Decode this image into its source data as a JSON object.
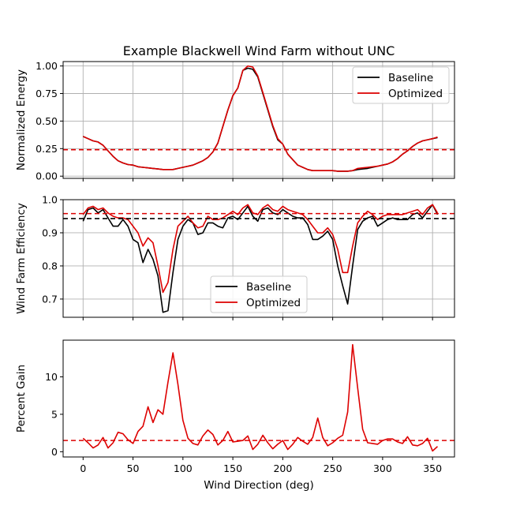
{
  "colors": {
    "baseline": "#000000",
    "optimized": "#dd0000",
    "grid": "#b0b0b0"
  },
  "chart_data": [
    {
      "type": "line",
      "title": "Example Blackwell Wind Farm without UNC",
      "xlabel": "",
      "ylabel": "Normalized Energy",
      "xlim": [
        -20,
        372
      ],
      "ylim": [
        -0.02,
        1.04
      ],
      "yticks": [
        0.0,
        0.25,
        0.5,
        0.75,
        1.0
      ],
      "ytick_labels": [
        "0.00",
        "0.25",
        "0.50",
        "0.75",
        "1.00"
      ],
      "grid": true,
      "legend": "top-right",
      "x": [
        0,
        5,
        10,
        15,
        20,
        25,
        30,
        35,
        40,
        45,
        50,
        55,
        60,
        65,
        70,
        75,
        80,
        85,
        90,
        95,
        100,
        105,
        110,
        115,
        120,
        125,
        130,
        135,
        140,
        145,
        150,
        155,
        160,
        165,
        170,
        175,
        180,
        185,
        190,
        195,
        200,
        205,
        210,
        215,
        220,
        225,
        230,
        235,
        240,
        245,
        250,
        255,
        260,
        265,
        270,
        275,
        280,
        285,
        290,
        295,
        300,
        305,
        310,
        315,
        320,
        325,
        330,
        335,
        340,
        345,
        350,
        355
      ],
      "series": [
        {
          "name": "Baseline",
          "color": "#000000",
          "dash": "",
          "values": [
            0.36,
            0.34,
            0.32,
            0.31,
            0.28,
            0.23,
            0.18,
            0.14,
            0.12,
            0.105,
            0.1,
            0.085,
            0.08,
            0.075,
            0.07,
            0.065,
            0.06,
            0.06,
            0.06,
            0.07,
            0.08,
            0.09,
            0.1,
            0.12,
            0.14,
            0.17,
            0.22,
            0.3,
            0.45,
            0.6,
            0.73,
            0.8,
            0.96,
            0.98,
            0.97,
            0.9,
            0.75,
            0.6,
            0.45,
            0.33,
            0.29,
            0.2,
            0.15,
            0.1,
            0.08,
            0.06,
            0.05,
            0.05,
            0.05,
            0.05,
            0.05,
            0.045,
            0.045,
            0.045,
            0.05,
            0.06,
            0.065,
            0.07,
            0.08,
            0.09,
            0.1,
            0.11,
            0.13,
            0.16,
            0.2,
            0.23,
            0.27,
            0.3,
            0.32,
            0.33,
            0.34,
            0.35
          ]
        },
        {
          "name": "Optimized",
          "color": "#dd0000",
          "dash": "",
          "values": [
            0.36,
            0.34,
            0.32,
            0.31,
            0.28,
            0.23,
            0.18,
            0.14,
            0.12,
            0.105,
            0.1,
            0.085,
            0.08,
            0.075,
            0.07,
            0.065,
            0.06,
            0.06,
            0.06,
            0.07,
            0.08,
            0.09,
            0.1,
            0.12,
            0.14,
            0.17,
            0.22,
            0.3,
            0.45,
            0.6,
            0.73,
            0.8,
            0.96,
            1.0,
            0.99,
            0.91,
            0.76,
            0.61,
            0.46,
            0.34,
            0.29,
            0.2,
            0.15,
            0.1,
            0.08,
            0.06,
            0.05,
            0.05,
            0.05,
            0.05,
            0.05,
            0.045,
            0.045,
            0.045,
            0.05,
            0.07,
            0.075,
            0.08,
            0.085,
            0.09,
            0.1,
            0.11,
            0.13,
            0.16,
            0.2,
            0.23,
            0.27,
            0.3,
            0.32,
            0.33,
            0.34,
            0.355
          ]
        },
        {
          "name": "",
          "color": "#dd0000",
          "dash": "6,4",
          "hline": 0.24
        }
      ]
    },
    {
      "type": "line",
      "title": "",
      "xlabel": "",
      "ylabel": "Wind Farm Efficiency",
      "xlim": [
        -20,
        372
      ],
      "ylim": [
        0.645,
        1.0
      ],
      "yticks": [
        0.7,
        0.8,
        0.9,
        1.0
      ],
      "ytick_labels": [
        "0.7",
        "0.8",
        "0.9",
        "1.0"
      ],
      "grid": true,
      "legend": "lower-center",
      "x": [
        0,
        5,
        10,
        15,
        20,
        25,
        30,
        35,
        40,
        45,
        50,
        55,
        60,
        65,
        70,
        75,
        80,
        85,
        90,
        95,
        100,
        105,
        110,
        115,
        120,
        125,
        130,
        135,
        140,
        145,
        150,
        155,
        160,
        165,
        170,
        175,
        180,
        185,
        190,
        195,
        200,
        205,
        210,
        215,
        220,
        225,
        230,
        235,
        240,
        245,
        250,
        255,
        260,
        265,
        270,
        275,
        280,
        285,
        290,
        295,
        300,
        305,
        310,
        315,
        320,
        325,
        330,
        335,
        340,
        345,
        350,
        355
      ],
      "series": [
        {
          "name": "Baseline",
          "color": "#000000",
          "dash": "",
          "values": [
            0.935,
            0.97,
            0.975,
            0.96,
            0.97,
            0.945,
            0.92,
            0.92,
            0.94,
            0.92,
            0.88,
            0.87,
            0.81,
            0.85,
            0.82,
            0.77,
            0.66,
            0.665,
            0.78,
            0.88,
            0.92,
            0.94,
            0.93,
            0.895,
            0.9,
            0.93,
            0.93,
            0.92,
            0.915,
            0.945,
            0.95,
            0.94,
            0.96,
            0.98,
            0.95,
            0.935,
            0.97,
            0.975,
            0.96,
            0.955,
            0.97,
            0.96,
            0.95,
            0.945,
            0.945,
            0.925,
            0.88,
            0.88,
            0.89,
            0.905,
            0.88,
            0.8,
            0.74,
            0.685,
            0.8,
            0.91,
            0.935,
            0.945,
            0.95,
            0.92,
            0.93,
            0.94,
            0.945,
            0.94,
            0.94,
            0.94,
            0.955,
            0.96,
            0.945,
            0.965,
            0.985,
            0.955
          ]
        },
        {
          "name": "Optimized",
          "color": "#dd0000",
          "dash": "",
          "values": [
            0.955,
            0.975,
            0.98,
            0.97,
            0.975,
            0.96,
            0.95,
            0.945,
            0.945,
            0.94,
            0.92,
            0.9,
            0.86,
            0.885,
            0.87,
            0.8,
            0.72,
            0.75,
            0.85,
            0.92,
            0.935,
            0.95,
            0.93,
            0.915,
            0.92,
            0.95,
            0.94,
            0.94,
            0.945,
            0.955,
            0.965,
            0.955,
            0.975,
            0.985,
            0.96,
            0.955,
            0.975,
            0.985,
            0.97,
            0.965,
            0.98,
            0.97,
            0.965,
            0.96,
            0.955,
            0.94,
            0.92,
            0.9,
            0.9,
            0.915,
            0.895,
            0.85,
            0.78,
            0.78,
            0.86,
            0.93,
            0.95,
            0.965,
            0.955,
            0.94,
            0.95,
            0.955,
            0.955,
            0.955,
            0.955,
            0.96,
            0.965,
            0.97,
            0.955,
            0.975,
            0.985,
            0.96
          ]
        },
        {
          "name": "",
          "color": "#000000",
          "dash": "6,4",
          "hline": 0.943
        },
        {
          "name": "",
          "color": "#dd0000",
          "dash": "6,4",
          "hline": 0.958
        }
      ]
    },
    {
      "type": "line",
      "title": "",
      "xlabel": "Wind Direction (deg)",
      "ylabel": "Percent Gain",
      "xlim": [
        -20,
        372
      ],
      "ylim": [
        -0.7,
        14.9
      ],
      "yticks": [
        0,
        5,
        10
      ],
      "ytick_labels": [
        "0",
        "5",
        "10"
      ],
      "xticks": [
        0,
        50,
        100,
        150,
        200,
        250,
        300,
        350
      ],
      "xtick_labels": [
        "0",
        "50",
        "100",
        "150",
        "200",
        "250",
        "300",
        "350"
      ],
      "grid": false,
      "legend": "",
      "x": [
        0,
        5,
        10,
        15,
        20,
        25,
        30,
        35,
        40,
        45,
        50,
        55,
        60,
        65,
        70,
        75,
        80,
        85,
        90,
        95,
        100,
        105,
        110,
        115,
        120,
        125,
        130,
        135,
        140,
        145,
        150,
        155,
        160,
        165,
        170,
        175,
        180,
        185,
        190,
        195,
        200,
        205,
        210,
        215,
        220,
        225,
        230,
        235,
        240,
        245,
        250,
        255,
        260,
        265,
        270,
        275,
        280,
        285,
        290,
        295,
        300,
        305,
        310,
        315,
        320,
        325,
        330,
        335,
        340,
        345,
        350,
        355
      ],
      "series": [
        {
          "name": "",
          "color": "#dd0000",
          "dash": "",
          "values": [
            1.8,
            1.2,
            0.5,
            0.9,
            1.9,
            0.5,
            1.2,
            2.6,
            2.4,
            1.6,
            1.1,
            2.7,
            3.4,
            6.0,
            3.9,
            5.6,
            5.0,
            9.3,
            13.2,
            9.0,
            4.2,
            1.8,
            1.1,
            0.9,
            2.1,
            2.9,
            2.3,
            0.9,
            1.5,
            2.7,
            1.3,
            1.4,
            1.5,
            2.1,
            0.3,
            1.0,
            2.2,
            1.2,
            0.4,
            1.0,
            1.5,
            0.3,
            1.0,
            1.9,
            1.4,
            1.0,
            1.9,
            4.5,
            1.9,
            0.8,
            1.2,
            1.8,
            2.2,
            5.3,
            14.3,
            8.5,
            3.0,
            1.2,
            1.1,
            1.0,
            1.5,
            1.7,
            1.7,
            1.3,
            1.1,
            2.0,
            0.9,
            0.8,
            1.1,
            1.8,
            0.1,
            0.7
          ]
        },
        {
          "name": "",
          "color": "#dd0000",
          "dash": "6,4",
          "hline": 1.5
        }
      ]
    }
  ]
}
